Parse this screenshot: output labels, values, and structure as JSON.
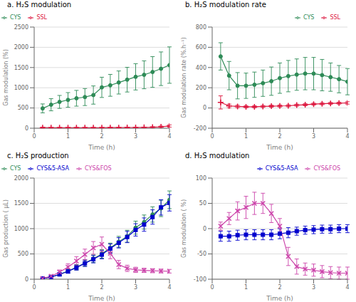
{
  "chart_data": [
    {
      "type": "line",
      "title": "a. H₂S modulation",
      "xlabel": "Time (h)",
      "ylabel": "Gas modulation (%)",
      "x": [
        0.25,
        0.5,
        0.75,
        1.0,
        1.25,
        1.5,
        1.75,
        2.0,
        2.25,
        2.5,
        2.75,
        3.0,
        3.25,
        3.5,
        3.75,
        4.0
      ],
      "xlim": [
        0,
        4
      ],
      "xticks": [
        0,
        1,
        2,
        3,
        4
      ],
      "ylim": [
        0,
        2500
      ],
      "yticks": [
        0,
        500,
        1000,
        1500,
        2000,
        2500
      ],
      "grid": true,
      "legend": "upper left",
      "series": [
        {
          "name": "CYS",
          "color": "#2e8b57",
          "marker": "circle",
          "line_style": "solid",
          "values": [
            490,
            580,
            650,
            700,
            740,
            770,
            820,
            1010,
            1060,
            1130,
            1200,
            1270,
            1320,
            1390,
            1470,
            1560
          ],
          "error": [
            110,
            150,
            160,
            180,
            195,
            210,
            225,
            250,
            270,
            285,
            305,
            325,
            345,
            380,
            415,
            450
          ]
        },
        {
          "name": "SSL",
          "color": "#dc143c",
          "marker": "plus",
          "line_style": "solid",
          "values": [
            15,
            12,
            12,
            12,
            12,
            12,
            12,
            12,
            15,
            15,
            18,
            18,
            20,
            25,
            35,
            55
          ],
          "error": [
            12,
            8,
            8,
            8,
            8,
            8,
            8,
            8,
            8,
            8,
            8,
            8,
            8,
            12,
            18,
            28
          ]
        }
      ]
    },
    {
      "type": "line",
      "title": "b. H₂S modulation rate",
      "xlabel": "Time (h)",
      "ylabel": "Gas modulation rate (%.h⁻¹)",
      "x": [
        0.25,
        0.5,
        0.75,
        1.0,
        1.25,
        1.5,
        1.75,
        2.0,
        2.25,
        2.5,
        2.75,
        3.0,
        3.25,
        3.5,
        3.75,
        4.0
      ],
      "xlim": [
        0,
        4
      ],
      "xticks": [
        0,
        1,
        2,
        3,
        4
      ],
      "ylim": [
        -200,
        800
      ],
      "yticks": [
        -200,
        0,
        200,
        400,
        600,
        800
      ],
      "grid": true,
      "legend": "upper right",
      "series": [
        {
          "name": "CYS",
          "color": "#2e8b57",
          "marker": "circle",
          "line_style": "solid",
          "values": [
            510,
            320,
            220,
            220,
            230,
            245,
            265,
            295,
            315,
            330,
            340,
            340,
            325,
            305,
            285,
            260
          ],
          "error": [
            135,
            140,
            130,
            125,
            125,
            130,
            140,
            150,
            155,
            155,
            160,
            160,
            155,
            140,
            135,
            130
          ]
        },
        {
          "name": "SSL",
          "color": "#dc143c",
          "marker": "plus",
          "line_style": "solid",
          "values": [
            55,
            20,
            15,
            12,
            12,
            15,
            18,
            20,
            22,
            28,
            32,
            38,
            42,
            45,
            48,
            50
          ],
          "error": [
            65,
            18,
            12,
            10,
            10,
            10,
            10,
            10,
            10,
            10,
            10,
            10,
            10,
            10,
            10,
            12
          ]
        }
      ]
    },
    {
      "type": "line",
      "title": "c. H₂S production",
      "xlabel": "Time (h)",
      "ylabel": "Gas production ( μL)",
      "x": [
        0.25,
        0.5,
        0.75,
        1.0,
        1.25,
        1.5,
        1.75,
        2.0,
        2.25,
        2.5,
        2.75,
        3.0,
        3.25,
        3.5,
        3.75,
        4.0
      ],
      "xlim": [
        0,
        4
      ],
      "xticks": [
        0,
        1,
        2,
        3,
        4
      ],
      "ylim": [
        0,
        2000
      ],
      "yticks": [
        0,
        500,
        1000,
        1500,
        2000
      ],
      "grid": true,
      "legend": "upper left",
      "series": [
        {
          "name": "CYS",
          "color": "#2e8b57",
          "marker": "circle",
          "line_style": "solid",
          "values": [
            15,
            45,
            95,
            160,
            235,
            320,
            405,
            500,
            620,
            740,
            850,
            1020,
            1130,
            1280,
            1400,
            1570
          ],
          "error": [
            8,
            18,
            28,
            40,
            52,
            65,
            75,
            85,
            95,
            108,
            118,
            128,
            140,
            152,
            162,
            175
          ]
        },
        {
          "name": "CYS&5-ASA",
          "color": "#0000cd",
          "marker": "square",
          "line_style": "solid",
          "values": [
            15,
            45,
            95,
            155,
            230,
            315,
            395,
            485,
            605,
            720,
            835,
            975,
            1080,
            1230,
            1420,
            1510
          ],
          "error": [
            8,
            18,
            28,
            38,
            50,
            62,
            72,
            82,
            92,
            102,
            112,
            122,
            132,
            142,
            152,
            162
          ]
        },
        {
          "name": "CYS&FOS",
          "color": "#cc44aa",
          "marker": "x",
          "line_style": "solid",
          "values": [
            15,
            60,
            140,
            240,
            360,
            490,
            620,
            690,
            510,
            290,
            215,
            185,
            175,
            168,
            162,
            158
          ],
          "error": [
            8,
            20,
            42,
            65,
            85,
            105,
            125,
            145,
            105,
            82,
            62,
            52,
            42,
            40,
            38,
            36
          ]
        }
      ]
    },
    {
      "type": "line",
      "title": "d. H₂S modulation",
      "xlabel": "Time (h)",
      "ylabel": "Gas modulation ( %)",
      "x": [
        0.25,
        0.5,
        0.75,
        1.0,
        1.25,
        1.5,
        1.75,
        2.0,
        2.25,
        2.5,
        2.75,
        3.0,
        3.25,
        3.5,
        3.75,
        4.0
      ],
      "xlim": [
        0,
        4
      ],
      "xticks": [
        0,
        1,
        2,
        3,
        4
      ],
      "ylim": [
        -100,
        100
      ],
      "yticks": [
        -100,
        -50,
        0,
        50,
        100
      ],
      "grid": true,
      "legend": "upper right",
      "series": [
        {
          "name": "CYS&5-ASA",
          "color": "#0000cd",
          "marker": "square",
          "line_style": "solid",
          "values": [
            -15,
            -15,
            -13,
            -12,
            -12,
            -12,
            -12,
            -10,
            -8,
            -5,
            -3,
            -2,
            -1,
            -1,
            0,
            0
          ],
          "error": [
            10,
            10,
            10,
            10,
            10,
            10,
            10,
            10,
            10,
            8,
            8,
            8,
            8,
            8,
            8,
            8
          ]
        },
        {
          "name": "CYS&FOS",
          "color": "#cc44aa",
          "marker": "x",
          "line_style": "solid",
          "values": [
            5,
            20,
            35,
            42,
            50,
            50,
            30,
            5,
            -55,
            -75,
            -80,
            -82,
            -85,
            -87,
            -88,
            -88
          ],
          "error": [
            8,
            12,
            18,
            22,
            22,
            20,
            18,
            15,
            18,
            15,
            12,
            12,
            12,
            12,
            12,
            12
          ]
        }
      ]
    }
  ]
}
